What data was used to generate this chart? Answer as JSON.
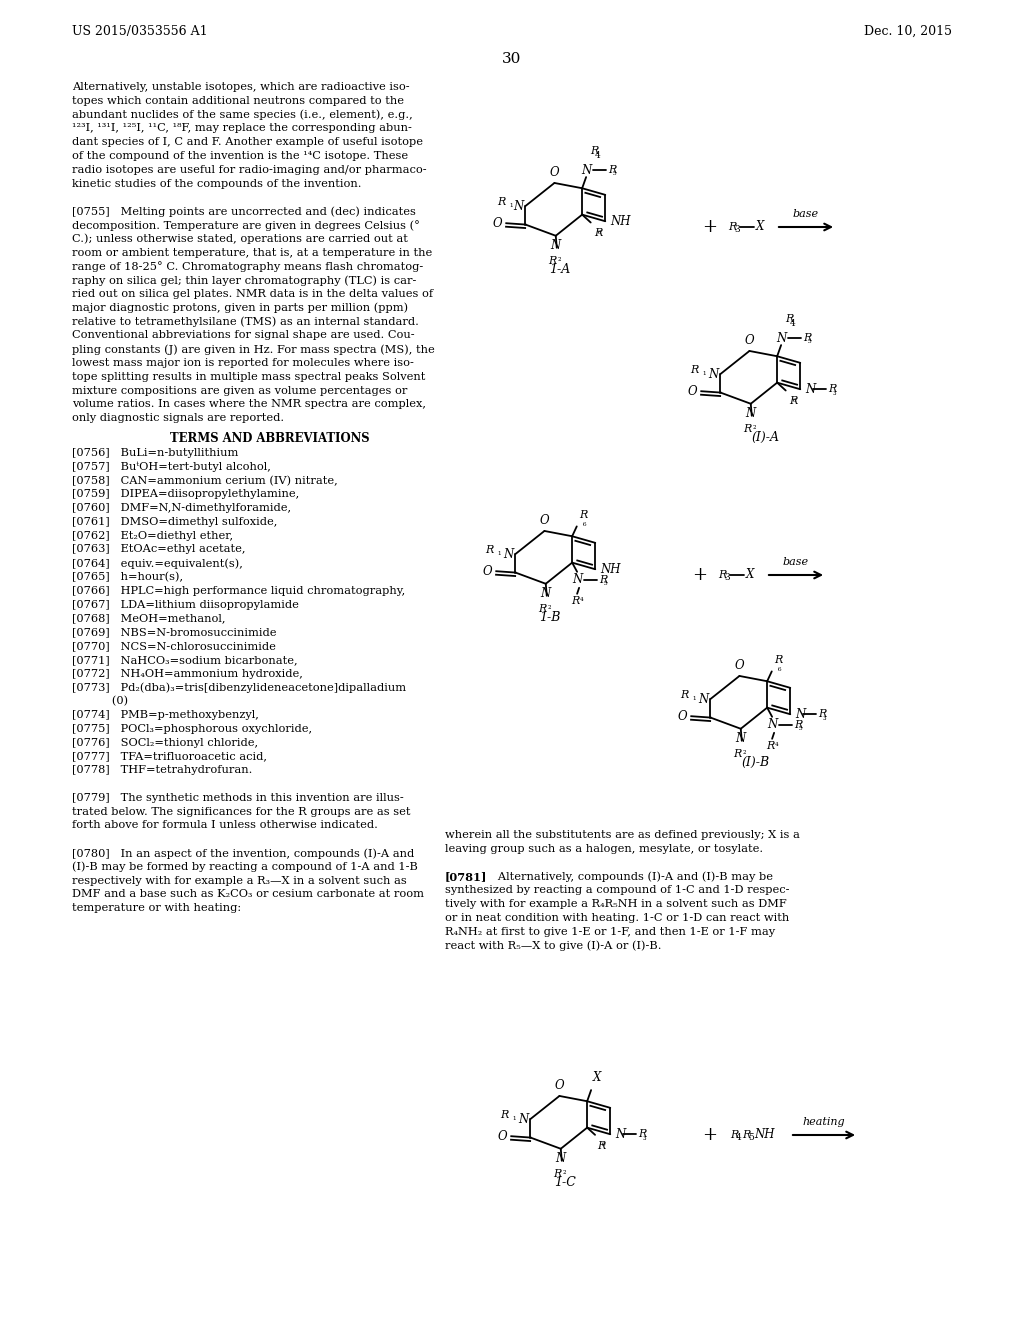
{
  "bg": "#ffffff",
  "header_left": "US 2015/0353556 A1",
  "header_right": "Dec. 10, 2015",
  "page_num": "30",
  "body_lines": [
    "Alternatively, unstable isotopes, which are radioactive iso-",
    "topes which contain additional neutrons compared to the",
    "abundant nuclides of the same species (i.e., element), e.g.,",
    "¹²³I, ¹³¹I, ¹²⁵I, ¹¹C, ¹⁸F, may replace the corresponding abun-",
    "dant species of I, C and F. Another example of useful isotope",
    "of the compound of the invention is the ¹⁴C isotope. These",
    "radio isotopes are useful for radio-imaging and/or pharmaco-",
    "kinetic studies of the compounds of the invention.",
    "",
    "[0755]   Melting points are uncorrected and (dec) indicates",
    "decomposition. Temperature are given in degrees Celsius (°",
    "C.); unless otherwise stated, operations are carried out at",
    "room or ambient temperature, that is, at a temperature in the",
    "range of 18-25° C. Chromatography means flash chromatog-",
    "raphy on silica gel; thin layer chromatography (TLC) is car-",
    "ried out on silica gel plates. NMR data is in the delta values of",
    "major diagnostic protons, given in parts per million (ppm)",
    "relative to tetramethylsilane (TMS) as an internal standard.",
    "Conventional abbreviations for signal shape are used. Cou-",
    "pling constants (J) are given in Hz. For mass spectra (MS), the",
    "lowest mass major ion is reported for molecules where iso-",
    "tope splitting results in multiple mass spectral peaks Solvent",
    "mixture compositions are given as volume percentages or",
    "volume ratios. In cases where the NMR spectra are complex,",
    "only diagnostic signals are reported."
  ],
  "terms_heading": "TERMS AND ABBREVIATIONS",
  "abbrev_lines": [
    "[0756]   BuLi=n-butyllithium",
    "[0757]   BuᵗOH=tert-butyl alcohol,",
    "[0758]   CAN=ammonium cerium (IV) nitrate,",
    "[0759]   DIPEA=diisopropylethylamine,",
    "[0760]   DMF=N,N-dimethylforamide,",
    "[0761]   DMSO=dimethyl sulfoxide,",
    "[0762]   Et₂O=diethyl ether,",
    "[0763]   EtOAc=ethyl acetate,",
    "[0764]   equiv.=equivalent(s),",
    "[0765]   h=hour(s),",
    "[0766]   HPLC=high performance liquid chromatography,",
    "[0767]   LDA=lithium diisopropylamide",
    "[0768]   MeOH=methanol,",
    "[0769]   NBS=N-bromosuccinimide",
    "[0770]   NCS=N-chlorosuccinimide",
    "[0771]   NaHCO₃=sodium bicarbonate,",
    "[0772]   NH₄OH=ammonium hydroxide,",
    "[0773]   Pd₂(dba)₃=tris[dibenzylideneacetone]dipalladium",
    "           (0)",
    "[0774]   PMB=p-methoxybenzyl,",
    "[0775]   POCl₃=phosphorous oxychloride,",
    "[0776]   SOCl₂=thionyl chloride,",
    "[0777]   TFA=trifluoroacetic acid,",
    "[0778]   THF=tetrahydrofuran.",
    "",
    "[0779]   The synthetic methods in this invention are illus-",
    "trated below. The significances for the R groups are as set",
    "forth above for formula I unless otherwise indicated.",
    "",
    "[0780]   In an aspect of the invention, compounds (I)-A and",
    "(I)-B may be formed by reacting a compound of 1-A and 1-B",
    "respectively with for example a R₃—X in a solvent such as",
    "DMF and a base such as K₂CO₃ or cesium carbonate at room",
    "temperature or with heating:"
  ],
  "right_col_lines": [
    "wherein all the substitutents are as defined previously; X is a",
    "leaving group such as a halogen, mesylate, or tosylate.",
    "",
    "[0781]   Alternatively, compounds (I)-A and (I)-B may be",
    "synthesized by reacting a compound of 1-C and 1-D respec-",
    "tively with for example a R₄R₅NH in a solvent such as DMF",
    "or in neat condition with heating. 1-C or 1-D can react with",
    "R₄NH₂ at first to give 1-E or 1-F, and then 1-E or 1-F may",
    "react with R₅—X to give (I)-A or (I)-B."
  ]
}
